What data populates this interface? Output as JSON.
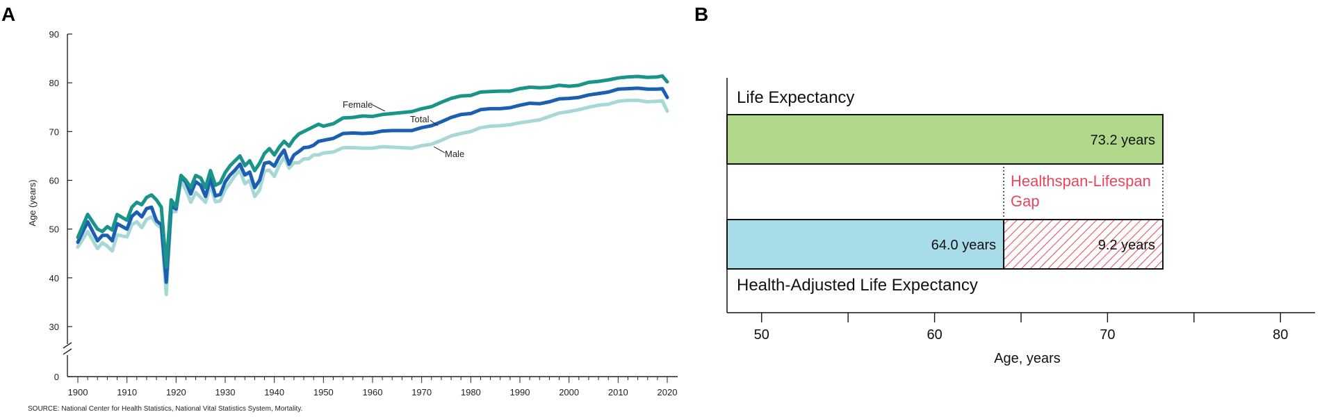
{
  "chart_data": [
    {
      "type": "line",
      "panel": "A",
      "ylabel": "Age (years)",
      "source": "SOURCE: National Center for Health Statistics, National Vital Statistics System, Mortality.",
      "xlim": [
        1900,
        2020
      ],
      "ylim": [
        30,
        90
      ],
      "y_axis_break": true,
      "y_ticks": [
        0,
        30,
        40,
        50,
        60,
        70,
        80,
        90
      ],
      "x_ticks": [
        1900,
        1910,
        1920,
        1930,
        1940,
        1950,
        1960,
        1970,
        1980,
        1990,
        2000,
        2010,
        2020
      ],
      "series": [
        {
          "name": "Female",
          "color": "#1a9488",
          "points": [
            [
              1900,
              48.3
            ],
            [
              1902,
              53
            ],
            [
              1904,
              50
            ],
            [
              1905,
              49.5
            ],
            [
              1906,
              50.5
            ],
            [
              1907,
              49.8
            ],
            [
              1908,
              53
            ],
            [
              1910,
              51.8
            ],
            [
              1911,
              54.5
            ],
            [
              1912,
              55.5
            ],
            [
              1913,
              55
            ],
            [
              1914,
              56.5
            ],
            [
              1915,
              57
            ],
            [
              1916,
              56
            ],
            [
              1917,
              54.5
            ],
            [
              1918,
              42.2
            ],
            [
              1919,
              56
            ],
            [
              1920,
              54.6
            ],
            [
              1921,
              61
            ],
            [
              1922,
              60
            ],
            [
              1923,
              58.5
            ],
            [
              1924,
              61
            ],
            [
              1925,
              60.5
            ],
            [
              1926,
              58.5
            ],
            [
              1927,
              62
            ],
            [
              1928,
              59
            ],
            [
              1929,
              59.5
            ],
            [
              1930,
              61.6
            ],
            [
              1931,
              63
            ],
            [
              1932,
              64
            ],
            [
              1933,
              65
            ],
            [
              1934,
              63
            ],
            [
              1935,
              64
            ],
            [
              1936,
              62
            ],
            [
              1937,
              63.5
            ],
            [
              1938,
              65.5
            ],
            [
              1939,
              66.5
            ],
            [
              1940,
              65.2
            ],
            [
              1941,
              66.8
            ],
            [
              1942,
              68
            ],
            [
              1943,
              67
            ],
            [
              1944,
              68.5
            ],
            [
              1945,
              69.5
            ],
            [
              1946,
              70
            ],
            [
              1947,
              70.5
            ],
            [
              1948,
              71
            ],
            [
              1949,
              71.5
            ],
            [
              1950,
              71.1
            ],
            [
              1952,
              71.6
            ],
            [
              1954,
              72.8
            ],
            [
              1956,
              72.9
            ],
            [
              1958,
              73.2
            ],
            [
              1960,
              73.1
            ],
            [
              1962,
              73.5
            ],
            [
              1964,
              73.7
            ],
            [
              1966,
              73.9
            ],
            [
              1968,
              74.1
            ],
            [
              1970,
              74.7
            ],
            [
              1972,
              75.1
            ],
            [
              1974,
              76
            ],
            [
              1976,
              76.8
            ],
            [
              1978,
              77.3
            ],
            [
              1980,
              77.4
            ],
            [
              1982,
              78.1
            ],
            [
              1984,
              78.2
            ],
            [
              1986,
              78.3
            ],
            [
              1988,
              78.3
            ],
            [
              1990,
              78.8
            ],
            [
              1992,
              79.1
            ],
            [
              1994,
              79
            ],
            [
              1996,
              79.1
            ],
            [
              1998,
              79.5
            ],
            [
              2000,
              79.3
            ],
            [
              2002,
              79.5
            ],
            [
              2004,
              80.1
            ],
            [
              2006,
              80.3
            ],
            [
              2008,
              80.6
            ],
            [
              2010,
              81
            ],
            [
              2012,
              81.2
            ],
            [
              2014,
              81.3
            ],
            [
              2016,
              81.1
            ],
            [
              2018,
              81.2
            ],
            [
              2019,
              81.4
            ],
            [
              2020,
              80.2
            ]
          ]
        },
        {
          "name": "Total",
          "color": "#1b5fb3",
          "points": [
            [
              1900,
              47.3
            ],
            [
              1902,
              51.5
            ],
            [
              1904,
              47.6
            ],
            [
              1905,
              48.7
            ],
            [
              1906,
              48.7
            ],
            [
              1907,
              47.6
            ],
            [
              1908,
              51.1
            ],
            [
              1910,
              50
            ],
            [
              1911,
              52.6
            ],
            [
              1912,
              53.5
            ],
            [
              1913,
              52.5
            ],
            [
              1914,
              54.2
            ],
            [
              1915,
              54.5
            ],
            [
              1916,
              51.7
            ],
            [
              1917,
              50.9
            ],
            [
              1918,
              39.1
            ],
            [
              1919,
              54.7
            ],
            [
              1920,
              54.1
            ],
            [
              1921,
              60.8
            ],
            [
              1922,
              59.6
            ],
            [
              1923,
              57.2
            ],
            [
              1924,
              59.7
            ],
            [
              1925,
              59
            ],
            [
              1926,
              56.7
            ],
            [
              1927,
              60.4
            ],
            [
              1928,
              56.8
            ],
            [
              1929,
              57.1
            ],
            [
              1930,
              59.7
            ],
            [
              1931,
              61.1
            ],
            [
              1932,
              62.1
            ],
            [
              1933,
              63.3
            ],
            [
              1934,
              61.1
            ],
            [
              1935,
              61.7
            ],
            [
              1936,
              58.5
            ],
            [
              1937,
              60
            ],
            [
              1938,
              63.5
            ],
            [
              1939,
              63.7
            ],
            [
              1940,
              62.9
            ],
            [
              1941,
              64.8
            ],
            [
              1942,
              66.2
            ],
            [
              1943,
              63.3
            ],
            [
              1944,
              65.2
            ],
            [
              1945,
              65.9
            ],
            [
              1946,
              66.7
            ],
            [
              1947,
              66.8
            ],
            [
              1948,
              67.2
            ],
            [
              1949,
              68
            ],
            [
              1950,
              68.2
            ],
            [
              1952,
              68.6
            ],
            [
              1954,
              69.6
            ],
            [
              1956,
              69.7
            ],
            [
              1958,
              69.6
            ],
            [
              1960,
              69.7
            ],
            [
              1962,
              70.1
            ],
            [
              1964,
              70.2
            ],
            [
              1966,
              70.2
            ],
            [
              1968,
              70.2
            ],
            [
              1970,
              70.8
            ],
            [
              1972,
              71.2
            ],
            [
              1974,
              72
            ],
            [
              1976,
              72.9
            ],
            [
              1978,
              73.5
            ],
            [
              1980,
              73.7
            ],
            [
              1982,
              74.5
            ],
            [
              1984,
              74.7
            ],
            [
              1986,
              74.7
            ],
            [
              1988,
              74.9
            ],
            [
              1990,
              75.4
            ],
            [
              1992,
              75.8
            ],
            [
              1994,
              75.7
            ],
            [
              1996,
              76.1
            ],
            [
              1998,
              76.7
            ],
            [
              2000,
              76.8
            ],
            [
              2002,
              77
            ],
            [
              2004,
              77.5
            ],
            [
              2006,
              77.8
            ],
            [
              2008,
              78.1
            ],
            [
              2010,
              78.7
            ],
            [
              2012,
              78.8
            ],
            [
              2014,
              78.9
            ],
            [
              2016,
              78.7
            ],
            [
              2018,
              78.7
            ],
            [
              2019,
              78.8
            ],
            [
              2020,
              77
            ]
          ]
        },
        {
          "name": "Male",
          "color": "#a8d8d6",
          "points": [
            [
              1900,
              46.3
            ],
            [
              1902,
              49.5
            ],
            [
              1904,
              46
            ],
            [
              1905,
              47.2
            ],
            [
              1906,
              46.5
            ],
            [
              1907,
              45.5
            ],
            [
              1908,
              48.8
            ],
            [
              1910,
              48.4
            ],
            [
              1911,
              50.9
            ],
            [
              1912,
              51.5
            ],
            [
              1913,
              50.3
            ],
            [
              1914,
              52
            ],
            [
              1915,
              52.5
            ],
            [
              1916,
              51
            ],
            [
              1917,
              50.2
            ],
            [
              1918,
              36.6
            ],
            [
              1919,
              53.5
            ],
            [
              1920,
              53.6
            ],
            [
              1921,
              60
            ],
            [
              1922,
              58
            ],
            [
              1923,
              55.5
            ],
            [
              1924,
              57.5
            ],
            [
              1925,
              56.5
            ],
            [
              1926,
              55.5
            ],
            [
              1927,
              59
            ],
            [
              1928,
              55.6
            ],
            [
              1929,
              55.8
            ],
            [
              1930,
              58.1
            ],
            [
              1931,
              59.5
            ],
            [
              1932,
              61
            ],
            [
              1933,
              62
            ],
            [
              1934,
              59.3
            ],
            [
              1935,
              60
            ],
            [
              1936,
              56.7
            ],
            [
              1937,
              58
            ],
            [
              1938,
              61.9
            ],
            [
              1939,
              62.1
            ],
            [
              1940,
              60.8
            ],
            [
              1941,
              63.1
            ],
            [
              1942,
              64.7
            ],
            [
              1943,
              62.5
            ],
            [
              1944,
              63.6
            ],
            [
              1945,
              63.6
            ],
            [
              1946,
              64.4
            ],
            [
              1947,
              64.4
            ],
            [
              1948,
              65.2
            ],
            [
              1949,
              65.2
            ],
            [
              1950,
              65.6
            ],
            [
              1952,
              65.8
            ],
            [
              1954,
              66.7
            ],
            [
              1956,
              66.7
            ],
            [
              1958,
              66.6
            ],
            [
              1960,
              66.6
            ],
            [
              1962,
              66.9
            ],
            [
              1964,
              66.8
            ],
            [
              1966,
              66.7
            ],
            [
              1968,
              66.6
            ],
            [
              1970,
              67.1
            ],
            [
              1972,
              67.4
            ],
            [
              1974,
              68.2
            ],
            [
              1976,
              69.1
            ],
            [
              1978,
              69.6
            ],
            [
              1980,
              70
            ],
            [
              1982,
              70.8
            ],
            [
              1984,
              71.1
            ],
            [
              1986,
              71.2
            ],
            [
              1988,
              71.4
            ],
            [
              1990,
              71.8
            ],
            [
              1992,
              72.1
            ],
            [
              1994,
              72.4
            ],
            [
              1996,
              73.1
            ],
            [
              1998,
              73.8
            ],
            [
              2000,
              74.1
            ],
            [
              2002,
              74.5
            ],
            [
              2004,
              75
            ],
            [
              2006,
              75.4
            ],
            [
              2008,
              75.6
            ],
            [
              2010,
              76.2
            ],
            [
              2012,
              76.4
            ],
            [
              2014,
              76.4
            ],
            [
              2016,
              76.1
            ],
            [
              2018,
              76.2
            ],
            [
              2019,
              76.3
            ],
            [
              2020,
              74.2
            ]
          ]
        }
      ]
    },
    {
      "type": "bar",
      "panel": "B",
      "xlabel": "Age, years",
      "xlim": [
        48,
        82
      ],
      "x_ticks": [
        50,
        60,
        70,
        80
      ],
      "bars": [
        {
          "name": "Life Expectancy",
          "start": 48,
          "value": 73.2,
          "label": "73.2 years",
          "color": "#b1d78b"
        },
        {
          "name": "Health-Adjusted Life Expectancy",
          "start": 48,
          "value": 64.0,
          "label": "64.0 years",
          "color": "#a8dce8"
        }
      ],
      "gap": {
        "name": "Healthspan-Lifespan Gap",
        "line1": "Healthspan-Lifespan",
        "line2": "Gap",
        "value": 9.2,
        "label": "9.2 years",
        "color": "#e8455f"
      }
    }
  ],
  "panel_labels": {
    "a": "A",
    "b": "B"
  }
}
